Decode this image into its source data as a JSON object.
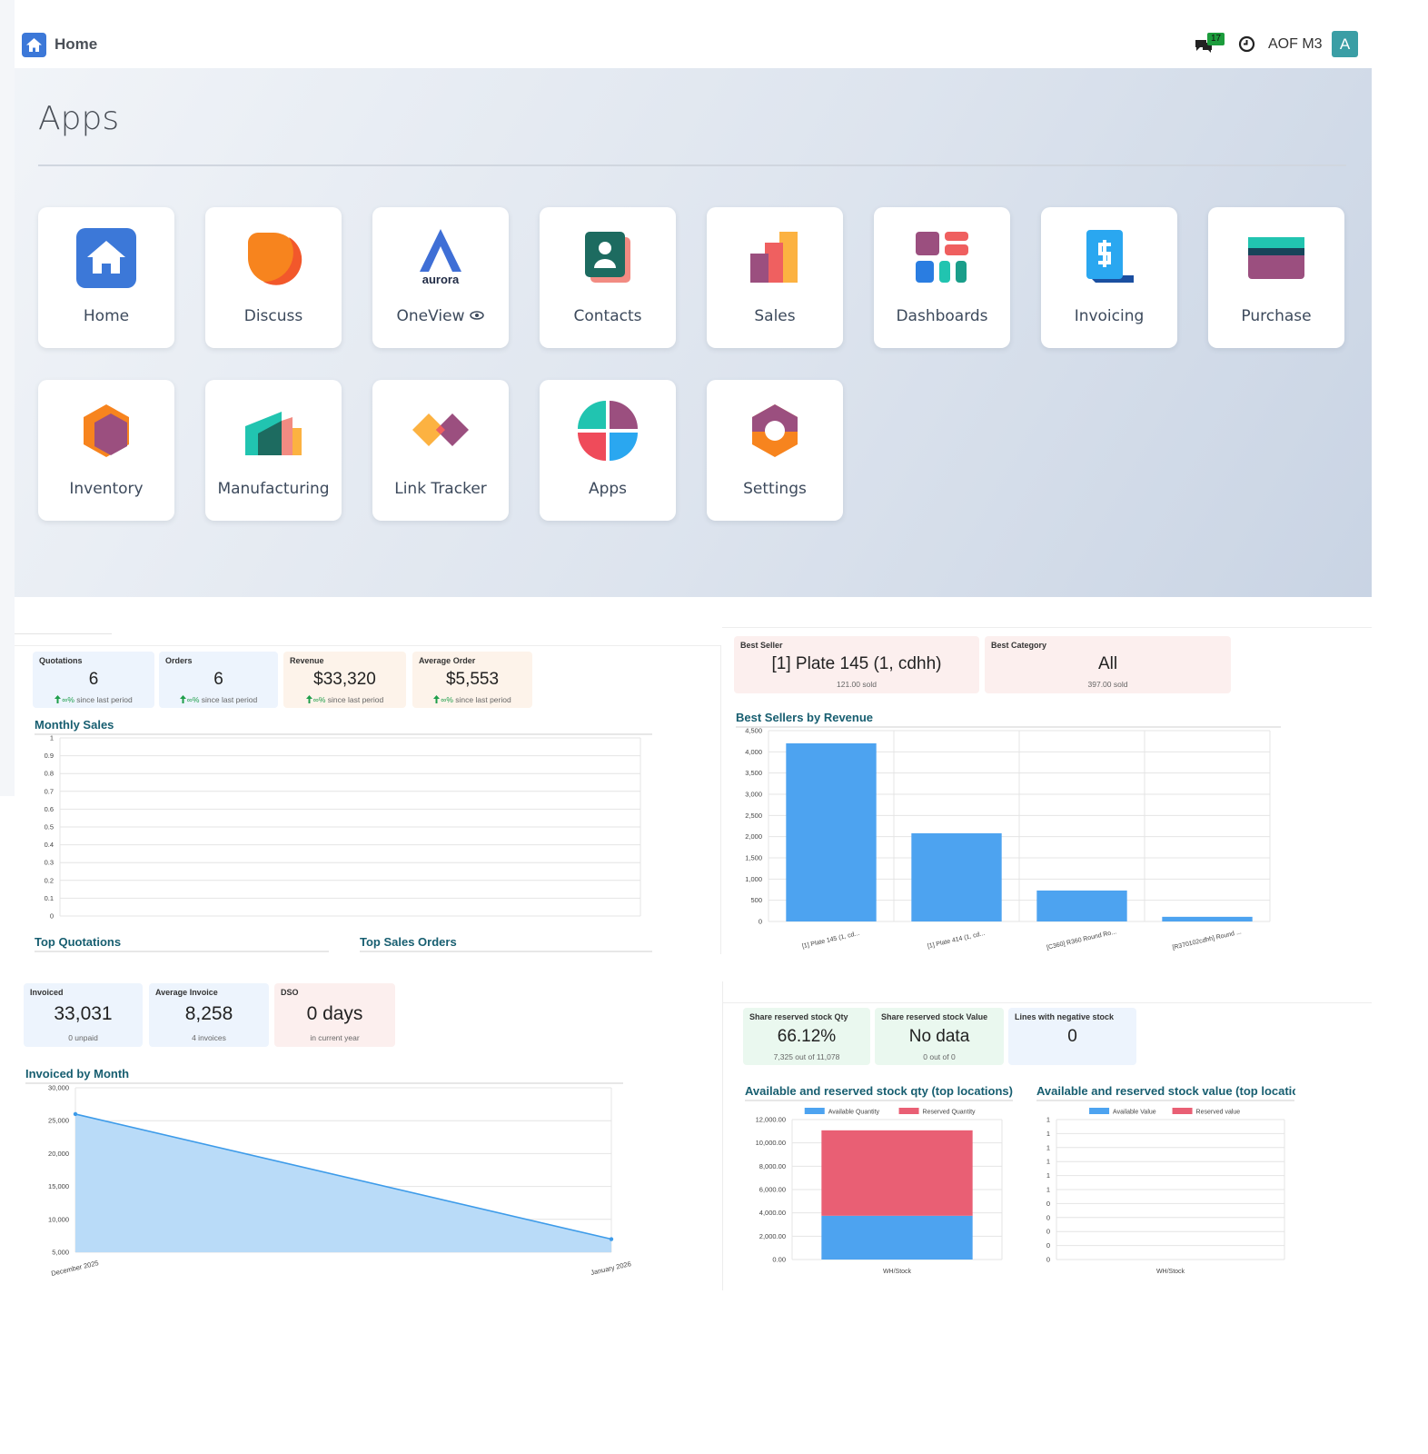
{
  "header": {
    "title": "Home",
    "notifications": 17,
    "user": "AOF M3",
    "avatar": "A"
  },
  "apps": {
    "title": "Apps",
    "logo_text": "aurora",
    "items": [
      "Home",
      "Discuss",
      "OneView",
      "Contacts",
      "Sales",
      "Dashboards",
      "Invoicing",
      "Purchase",
      "Inventory",
      "Manufacturing",
      "Link Tracker",
      "Apps",
      "Settings"
    ]
  },
  "sales_kpis": [
    {
      "label": "Quotations",
      "value": "6",
      "change": "∞%",
      "note": "since last period"
    },
    {
      "label": "Orders",
      "value": "6",
      "change": "∞%",
      "note": "since last period"
    },
    {
      "label": "Revenue",
      "value": "$33,320",
      "change": "∞%",
      "note": "since last period"
    },
    {
      "label": "Average Order",
      "value": "$5,553",
      "change": "∞%",
      "note": "since last period"
    }
  ],
  "product_kpis": [
    {
      "label": "Best Seller",
      "value": "[1] Plate 145 (1, cdhh)",
      "note": "121.00 sold"
    },
    {
      "label": "Best Category",
      "value": "All",
      "note": "397.00 sold"
    }
  ],
  "sales_sections": [
    "Top Quotations",
    "Top Sales Orders"
  ],
  "invoice_kpis": [
    {
      "label": "Invoiced",
      "value": "33,031",
      "note": "0 unpaid"
    },
    {
      "label": "Average Invoice",
      "value": "8,258",
      "note": "4 invoices"
    },
    {
      "label": "DSO",
      "value": "0 days",
      "note": "in current year"
    }
  ],
  "stock_kpis": [
    {
      "label": "Share reserved stock Qty",
      "value": "66.12%",
      "note": "7,325 out of 11,078"
    },
    {
      "label": "Share reserved stock Value",
      "value": "No data",
      "note": "0 out of 0"
    },
    {
      "label": "Lines with negative stock",
      "value": "0"
    }
  ],
  "chart_data": [
    {
      "type": "line",
      "title": "Monthly Sales",
      "ylim": [
        0,
        1
      ],
      "yticks": [
        0,
        0.1,
        0.2,
        0.3,
        0.4,
        0.5,
        0.6,
        0.7,
        0.8,
        0.9,
        1
      ],
      "grid": true
    },
    {
      "type": "bar",
      "title": "Best Sellers by Revenue",
      "color": "#4da3f0",
      "categories": [
        "[1] Plate 145 (1, cd...",
        "[1] Plate 414 (1, cd...",
        "[C360] R360 Round Ro...",
        "[R370102cdhh] Round ..."
      ],
      "values": [
        4200,
        2080,
        730,
        110
      ],
      "ylim": [
        0,
        4500
      ],
      "yticks": [
        0,
        500,
        {
          "value": 1000,
          "label": "1,000"
        },
        {
          "value": 1500,
          "label": "1,500"
        },
        {
          "value": 2000,
          "label": "2,000"
        },
        {
          "value": 2500,
          "label": "2,500"
        },
        {
          "value": 3000,
          "label": "3,000"
        },
        {
          "value": 3500,
          "label": "3,500"
        },
        {
          "value": 4000,
          "label": "4,000"
        },
        {
          "value": 4500,
          "label": "4,500"
        }
      ],
      "grid": true
    },
    {
      "type": "area",
      "title": "Invoiced by Month",
      "color": "#3d9be9",
      "fill": "#b9dbf8",
      "categories": [
        "December 2025",
        "January 2026"
      ],
      "values": [
        26000,
        7000
      ],
      "ylim": [
        5000,
        30000
      ],
      "yticks": [
        {
          "value": 5000,
          "label": "5,000"
        },
        {
          "value": 10000,
          "label": "10,000"
        },
        {
          "value": 15000,
          "label": "15,000"
        },
        {
          "value": 20000,
          "label": "20,000"
        },
        {
          "value": 25000,
          "label": "25,000"
        },
        {
          "value": 30000,
          "label": "30,000"
        }
      ],
      "grid": true
    },
    {
      "type": "stacked_bar",
      "title": "Available and reserved stock qty (top locations)",
      "categories": [
        "WH/Stock"
      ],
      "series": [
        {
          "name": "Available Quantity",
          "color": "#4da3f0",
          "values": [
            3753
          ]
        },
        {
          "name": "Reserved Quantity",
          "color": "#e95f74",
          "values": [
            7325
          ]
        }
      ],
      "ylim": [
        0,
        12000
      ],
      "yticks": [
        {
          "value": 0,
          "label": "0.00"
        },
        {
          "value": 2000,
          "label": "2,000.00"
        },
        {
          "value": 4000,
          "label": "4,000.00"
        },
        {
          "value": 6000,
          "label": "6,000.00"
        },
        {
          "value": 8000,
          "label": "8,000.00"
        },
        {
          "value": 10000,
          "label": "10,000.00"
        },
        {
          "value": 12000,
          "label": "12,000.00"
        }
      ],
      "grid": true
    },
    {
      "type": "stacked_bar",
      "title": "Available and reserved stock value (top locations)",
      "categories": [
        "WH/Stock"
      ],
      "series": [
        {
          "name": "Available Value",
          "color": "#4da3f0",
          "values": [
            null
          ]
        },
        {
          "name": "Reserved value",
          "color": "#e95f74",
          "values": [
            null
          ]
        }
      ],
      "ylim": [
        0,
        1
      ],
      "yticks": [
        0,
        {
          "value": 0.1,
          "label": "0"
        },
        {
          "value": 0.2,
          "label": "0"
        },
        {
          "value": 0.3,
          "label": "0"
        },
        {
          "value": 0.4,
          "label": "0"
        },
        {
          "value": 0.5,
          "label": "1"
        },
        {
          "value": 0.6,
          "label": "1"
        },
        {
          "value": 0.7,
          "label": "1"
        },
        {
          "value": 0.8,
          "label": "1"
        },
        {
          "value": 0.9,
          "label": "1"
        },
        1
      ],
      "grid": true
    }
  ]
}
